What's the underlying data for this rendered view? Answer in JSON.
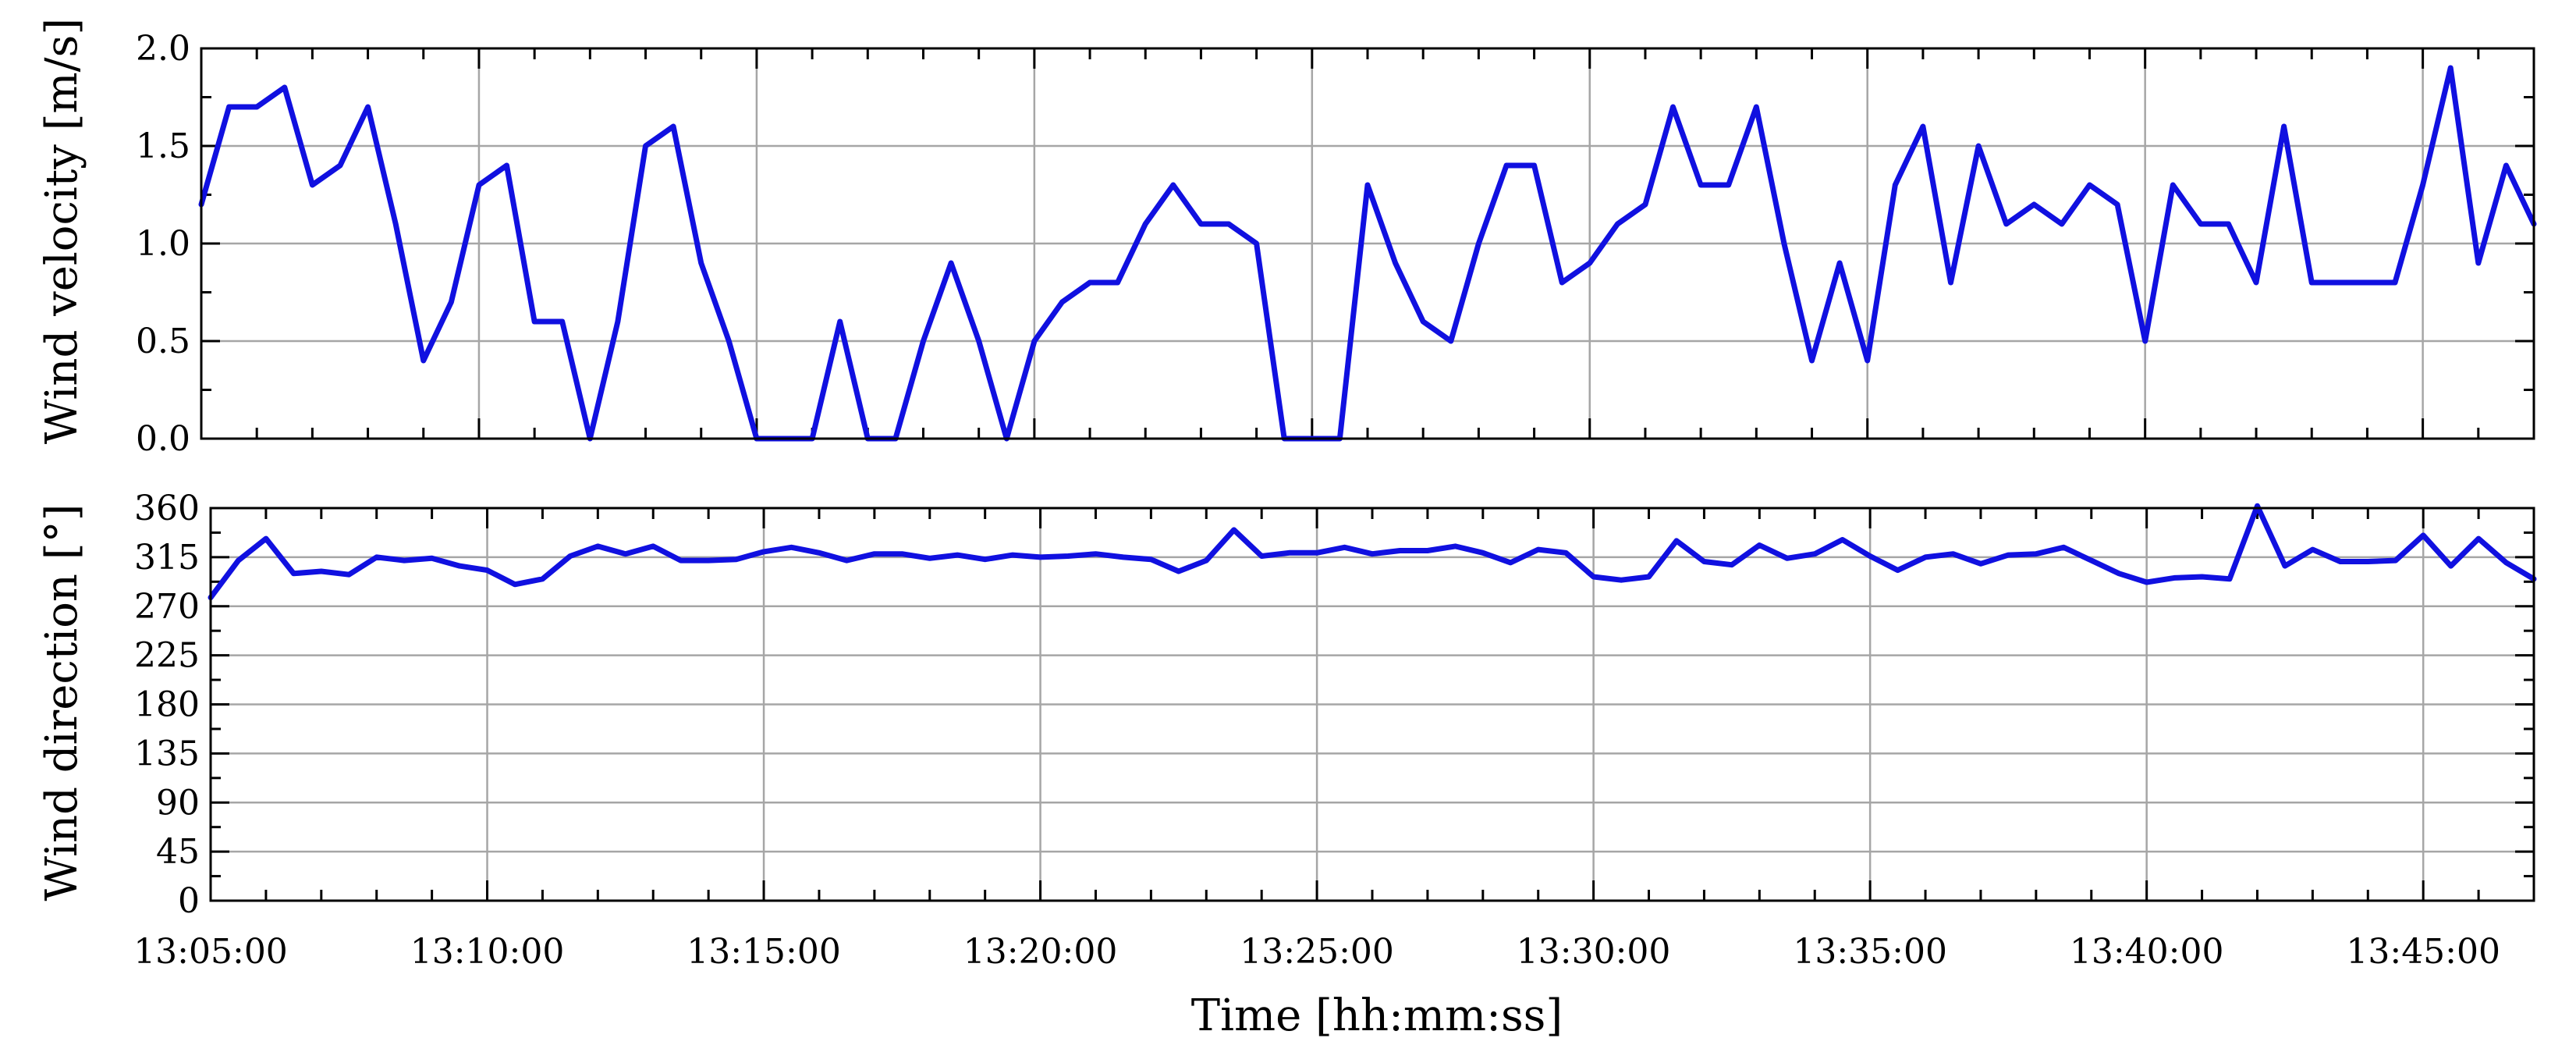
{
  "chart_data": [
    {
      "type": "line",
      "ylabel": "Wind velocity [m/s]",
      "xlabel": "",
      "xlim": [
        "13:05:00",
        "13:47:00"
      ],
      "ylim": [
        0,
        2.0
      ],
      "yticks": [
        0.0,
        0.5,
        1.0,
        1.5,
        2.0
      ],
      "ytick_labels": [
        "0.0",
        "0.5",
        "1.0",
        "1.5",
        "2.0"
      ],
      "xticks": [
        "13:05:00",
        "13:10:00",
        "13:15:00",
        "13:20:00",
        "13:25:00",
        "13:30:00",
        "13:35:00",
        "13:40:00",
        "13:45:00"
      ],
      "xtick_labels": [],
      "grid": true,
      "color": "#1010e0",
      "x": [
        "13:05:00",
        "13:05:30",
        "13:06:00",
        "13:06:30",
        "13:07:00",
        "13:07:30",
        "13:08:00",
        "13:08:30",
        "13:09:00",
        "13:09:30",
        "13:10:00",
        "13:10:30",
        "13:11:00",
        "13:11:30",
        "13:12:00",
        "13:12:30",
        "13:13:00",
        "13:13:30",
        "13:14:00",
        "13:14:30",
        "13:15:00",
        "13:15:30",
        "13:16:00",
        "13:16:30",
        "13:17:00",
        "13:17:30",
        "13:18:00",
        "13:18:30",
        "13:19:00",
        "13:19:30",
        "13:20:00",
        "13:20:30",
        "13:21:00",
        "13:21:30",
        "13:22:00",
        "13:22:30",
        "13:23:00",
        "13:23:30",
        "13:24:00",
        "13:24:30",
        "13:25:00",
        "13:25:30",
        "13:26:00",
        "13:26:30",
        "13:27:00",
        "13:27:30",
        "13:28:00",
        "13:28:30",
        "13:29:00",
        "13:29:30",
        "13:30:00",
        "13:30:30",
        "13:31:00",
        "13:31:30",
        "13:32:00",
        "13:32:30",
        "13:33:00",
        "13:33:30",
        "13:34:00",
        "13:34:30",
        "13:35:00",
        "13:35:30",
        "13:36:00",
        "13:36:30",
        "13:37:00",
        "13:37:30",
        "13:38:00",
        "13:38:30",
        "13:39:00",
        "13:39:30",
        "13:40:00",
        "13:40:30",
        "13:41:00",
        "13:41:30",
        "13:42:00",
        "13:42:30",
        "13:43:00",
        "13:43:30",
        "13:44:00",
        "13:44:30",
        "13:45:00",
        "13:45:30",
        "13:46:00",
        "13:46:30",
        "13:47:00"
      ],
      "values": [
        1.2,
        1.7,
        1.7,
        1.8,
        1.3,
        1.4,
        1.7,
        1.1,
        0.4,
        0.7,
        1.3,
        1.4,
        0.6,
        0.6,
        0.0,
        0.6,
        1.5,
        1.6,
        0.9,
        0.5,
        0.0,
        0.0,
        0.0,
        0.6,
        0.0,
        0.0,
        0.5,
        0.9,
        0.5,
        0.0,
        0.5,
        0.7,
        0.8,
        0.8,
        1.1,
        1.3,
        1.1,
        1.1,
        1.0,
        0.0,
        0.0,
        0.0,
        1.3,
        0.9,
        0.6,
        0.5,
        1.0,
        1.4,
        1.4,
        0.8,
        0.9,
        1.1,
        1.2,
        1.7,
        1.3,
        1.3,
        1.7,
        1.0,
        0.4,
        0.9,
        0.4,
        1.3,
        1.6,
        0.8,
        1.5,
        1.1,
        1.2,
        1.1,
        1.3,
        1.2,
        0.5,
        1.3,
        1.1,
        1.1,
        0.8,
        1.6,
        0.8,
        0.8,
        0.8,
        0.8,
        1.3,
        1.9,
        0.9,
        1.4,
        1.1
      ]
    },
    {
      "type": "line",
      "ylabel": "Wind direction [°]",
      "xlabel": "Time [hh:mm:ss]",
      "xlim": [
        "13:05:00",
        "13:47:00"
      ],
      "ylim": [
        0,
        360
      ],
      "yticks": [
        0,
        45,
        90,
        135,
        180,
        225,
        270,
        315,
        360
      ],
      "ytick_labels": [
        "0",
        "45",
        "90",
        "135",
        "180",
        "225",
        "270",
        "315",
        "360"
      ],
      "xticks": [
        "13:05:00",
        "13:10:00",
        "13:15:00",
        "13:20:00",
        "13:25:00",
        "13:30:00",
        "13:35:00",
        "13:40:00",
        "13:45:00"
      ],
      "xtick_labels": [
        "13:05:00",
        "13:10:00",
        "13:15:00",
        "13:20:00",
        "13:25:00",
        "13:30:00",
        "13:35:00",
        "13:40:00",
        "13:45:00"
      ],
      "grid": true,
      "color": "#1010e0",
      "x": [
        "13:05:00",
        "13:05:30",
        "13:06:00",
        "13:06:30",
        "13:07:00",
        "13:07:30",
        "13:08:00",
        "13:08:30",
        "13:09:00",
        "13:09:30",
        "13:10:00",
        "13:10:30",
        "13:11:00",
        "13:11:30",
        "13:12:00",
        "13:12:30",
        "13:13:00",
        "13:13:30",
        "13:14:00",
        "13:14:30",
        "13:15:00",
        "13:15:30",
        "13:16:00",
        "13:16:30",
        "13:17:00",
        "13:17:30",
        "13:18:00",
        "13:18:30",
        "13:19:00",
        "13:19:30",
        "13:20:00",
        "13:20:30",
        "13:21:00",
        "13:21:30",
        "13:22:00",
        "13:22:30",
        "13:23:00",
        "13:23:30",
        "13:24:00",
        "13:24:30",
        "13:25:00",
        "13:25:30",
        "13:26:00",
        "13:26:30",
        "13:27:00",
        "13:27:30",
        "13:28:00",
        "13:28:30",
        "13:29:00",
        "13:29:30",
        "13:30:00",
        "13:30:30",
        "13:31:00",
        "13:31:30",
        "13:32:00",
        "13:32:30",
        "13:33:00",
        "13:33:30",
        "13:34:00",
        "13:34:30",
        "13:35:00",
        "13:35:30",
        "13:36:00",
        "13:36:30",
        "13:37:00",
        "13:37:30",
        "13:38:00",
        "13:38:30",
        "13:39:00",
        "13:39:30",
        "13:40:00",
        "13:40:30",
        "13:41:00",
        "13:41:30",
        "13:42:00",
        "13:42:30",
        "13:43:00",
        "13:43:30",
        "13:44:00",
        "13:44:30",
        "13:45:00",
        "13:45:30",
        "13:46:00",
        "13:46:30",
        "13:47:00"
      ],
      "values": [
        278,
        312,
        332,
        300,
        302,
        299,
        315,
        312,
        314,
        307,
        303,
        290,
        295,
        316,
        325,
        318,
        325,
        312,
        312,
        313,
        320,
        324,
        319,
        312,
        318,
        318,
        314,
        317,
        313,
        317,
        315,
        316,
        318,
        315,
        313,
        302,
        312,
        340,
        316,
        319,
        319,
        324,
        318,
        321,
        321,
        325,
        319,
        310,
        322,
        319,
        297,
        294,
        297,
        330,
        311,
        308,
        326,
        314,
        318,
        331,
        316,
        303,
        315,
        318,
        309,
        317,
        318,
        324,
        312,
        300,
        292,
        296,
        297,
        295,
        362,
        307,
        322,
        311,
        311,
        312,
        335,
        307,
        332,
        310,
        295
      ]
    }
  ]
}
